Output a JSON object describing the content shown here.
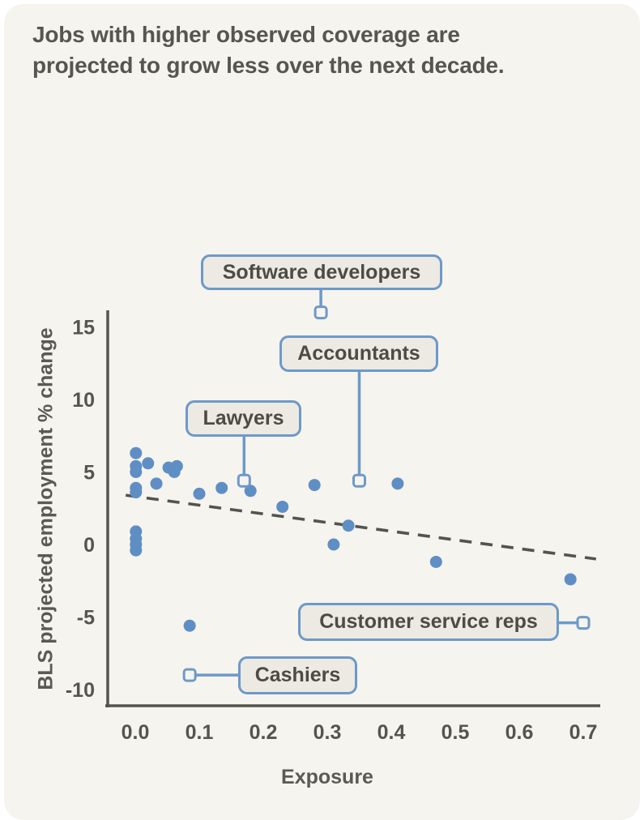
{
  "title": {
    "line1": "Jobs with higher observed coverage are",
    "line2": "projected to grow less over the next decade."
  },
  "colors": {
    "card_background": "#f6f4ee",
    "title_text": "#57554f",
    "axis_line": "#55534d",
    "tick_text": "#56544e",
    "marker_blue": "#5e8ec4",
    "trend_dash": "#55534d",
    "callout_fill": "#eceae2",
    "callout_border": "#6d99c9",
    "callout_text": "#4c4b46"
  },
  "chart_data": {
    "type": "scatter",
    "title": "Jobs with higher observed coverage are projected to grow less over the next decade.",
    "xlabel": "Exposure",
    "ylabel": "BLS projected employment % change",
    "xlim": [
      -0.05,
      0.73
    ],
    "ylim": [
      -11.3,
      16.3
    ],
    "grid": false,
    "legend": "none",
    "x_ticks": [
      "0.0",
      "0.1",
      "0.2",
      "0.3",
      "0.4",
      "0.5",
      "0.6",
      "0.7"
    ],
    "y_ticks": [
      "15",
      "10",
      "5",
      "0",
      "-5",
      "-10"
    ],
    "points": [
      [
        0.001,
        6.3
      ],
      [
        0.001,
        5.4
      ],
      [
        0.001,
        5.0
      ],
      [
        0.02,
        5.6
      ],
      [
        0.052,
        5.3
      ],
      [
        0.065,
        5.4
      ],
      [
        0.061,
        5.0
      ],
      [
        0.033,
        4.2
      ],
      [
        0.001,
        3.9
      ],
      [
        0.001,
        3.6
      ],
      [
        0.001,
        0.9
      ],
      [
        0.001,
        0.4
      ],
      [
        0.001,
        0.0
      ],
      [
        0.001,
        -0.4
      ],
      [
        0.1,
        3.5
      ],
      [
        0.135,
        3.9
      ],
      [
        0.18,
        3.7
      ],
      [
        0.23,
        2.6
      ],
      [
        0.28,
        4.1
      ],
      [
        0.333,
        1.3
      ],
      [
        0.31,
        0.0
      ],
      [
        0.41,
        4.2
      ],
      [
        0.47,
        -1.2
      ],
      [
        0.68,
        -2.4
      ],
      [
        0.085,
        -5.6
      ]
    ],
    "labeled_points": [
      {
        "label": "Software developers",
        "x": 0.29,
        "y": 16.0
      },
      {
        "label": "Accountants",
        "x": 0.35,
        "y": 4.4
      },
      {
        "label": "Lawyers",
        "x": 0.17,
        "y": 4.4
      },
      {
        "label": "Customer service reps",
        "x": 0.7,
        "y": -5.4
      },
      {
        "label": "Cashiers",
        "x": 0.085,
        "y": -9.0
      }
    ],
    "trend_line": {
      "style": "dashed",
      "points": [
        [
          -0.015,
          3.4
        ],
        [
          0.72,
          -1.0
        ]
      ]
    }
  }
}
